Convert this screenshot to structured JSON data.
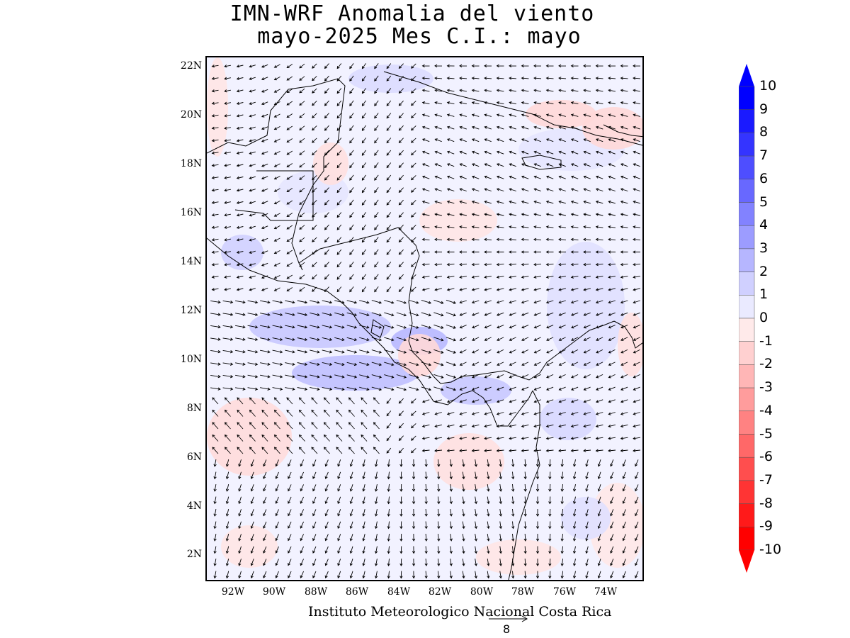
{
  "title": {
    "line1": "IMN-WRF Anomalia del viento",
    "line2": "mayo-2025 Mes C.I.: mayo"
  },
  "map": {
    "lat_labels": [
      "22N",
      "20N",
      "18N",
      "16N",
      "14N",
      "12N",
      "10N",
      "8N",
      "6N",
      "4N",
      "2N"
    ],
    "lon_labels": [
      "92W",
      "90W",
      "88W",
      "86W",
      "84W",
      "82W",
      "80W",
      "78W",
      "76W",
      "74W"
    ]
  },
  "colorbar": {
    "labels": [
      "10",
      "9",
      "8",
      "7",
      "6",
      "5",
      "4",
      "3",
      "2",
      "1",
      "0",
      "-1",
      "-2",
      "-3",
      "-4",
      "-5",
      "-6",
      "-7",
      "-8",
      "-9",
      "-10"
    ],
    "colors": [
      "#0000ff",
      "#1a1aff",
      "#3434ff",
      "#4e4eff",
      "#6868ff",
      "#8282ff",
      "#9c9cff",
      "#b6b6ff",
      "#d0d0ff",
      "#eaeaff",
      "#ffeaea",
      "#ffd0d0",
      "#ffb6b6",
      "#ff9c9c",
      "#ff8282",
      "#ff6868",
      "#ff4e4e",
      "#ff3434",
      "#ff1a1a",
      "#ff0000"
    ]
  },
  "footer": {
    "credit": "Instituto Meteorologico Nacional Costa Rica",
    "ref_vector_value": "8"
  }
}
